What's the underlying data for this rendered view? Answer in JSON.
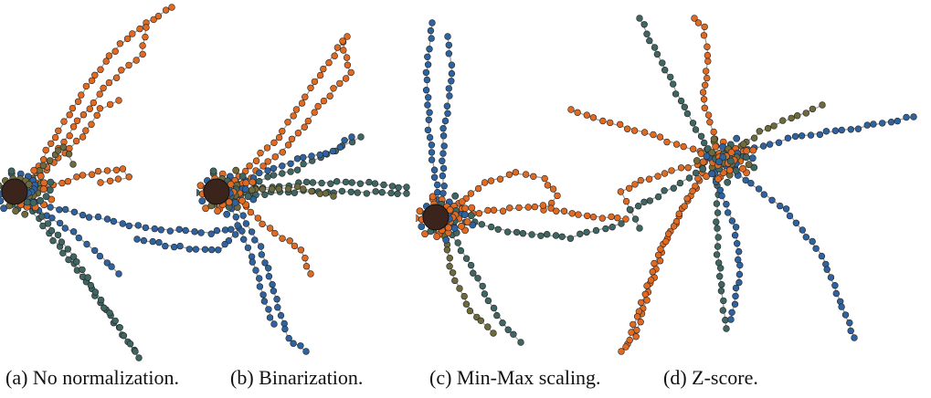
{
  "figure": {
    "panels": [
      {
        "id": "a",
        "caption": "(a) No normalization."
      },
      {
        "id": "b",
        "caption": "(b) Binarization."
      },
      {
        "id": "c",
        "caption": "(c) Min-Max scaling."
      },
      {
        "id": "d",
        "caption": "(d) Z-score."
      }
    ]
  },
  "colors": {
    "orange": "#e06a22",
    "blue": "#2f63a0",
    "teal": "#3f6663",
    "olive": "#6f6a3c",
    "hub": "#3a241c",
    "edge": "#9a9a9a"
  }
}
